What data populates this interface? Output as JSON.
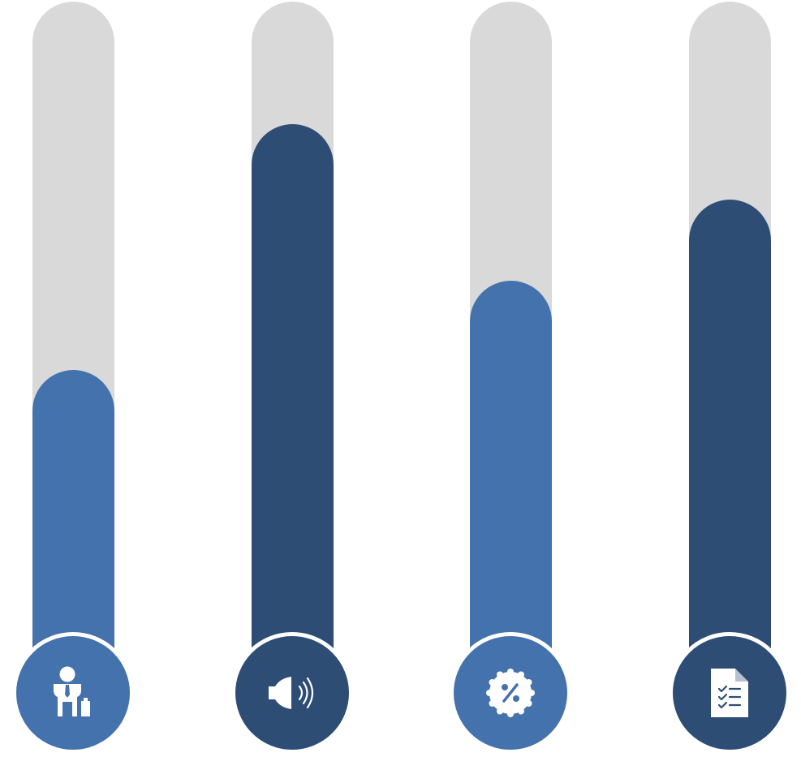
{
  "chart_data": {
    "type": "bar",
    "orientation": "vertical",
    "ylim": [
      0,
      1
    ],
    "values": [
      0.46,
      0.82,
      0.59,
      0.71
    ],
    "items": [
      {
        "icon": "businessman-icon",
        "value": 0.46,
        "color": "#4472ac"
      },
      {
        "icon": "speaker-icon",
        "value": 0.82,
        "color": "#2e4d75"
      },
      {
        "icon": "discount-badge-icon",
        "value": 0.59,
        "color": "#4472ac"
      },
      {
        "icon": "checklist-document-icon",
        "value": 0.71,
        "color": "#2e4d75"
      }
    ],
    "track_color": "#d9d9d9",
    "grid": false
  }
}
